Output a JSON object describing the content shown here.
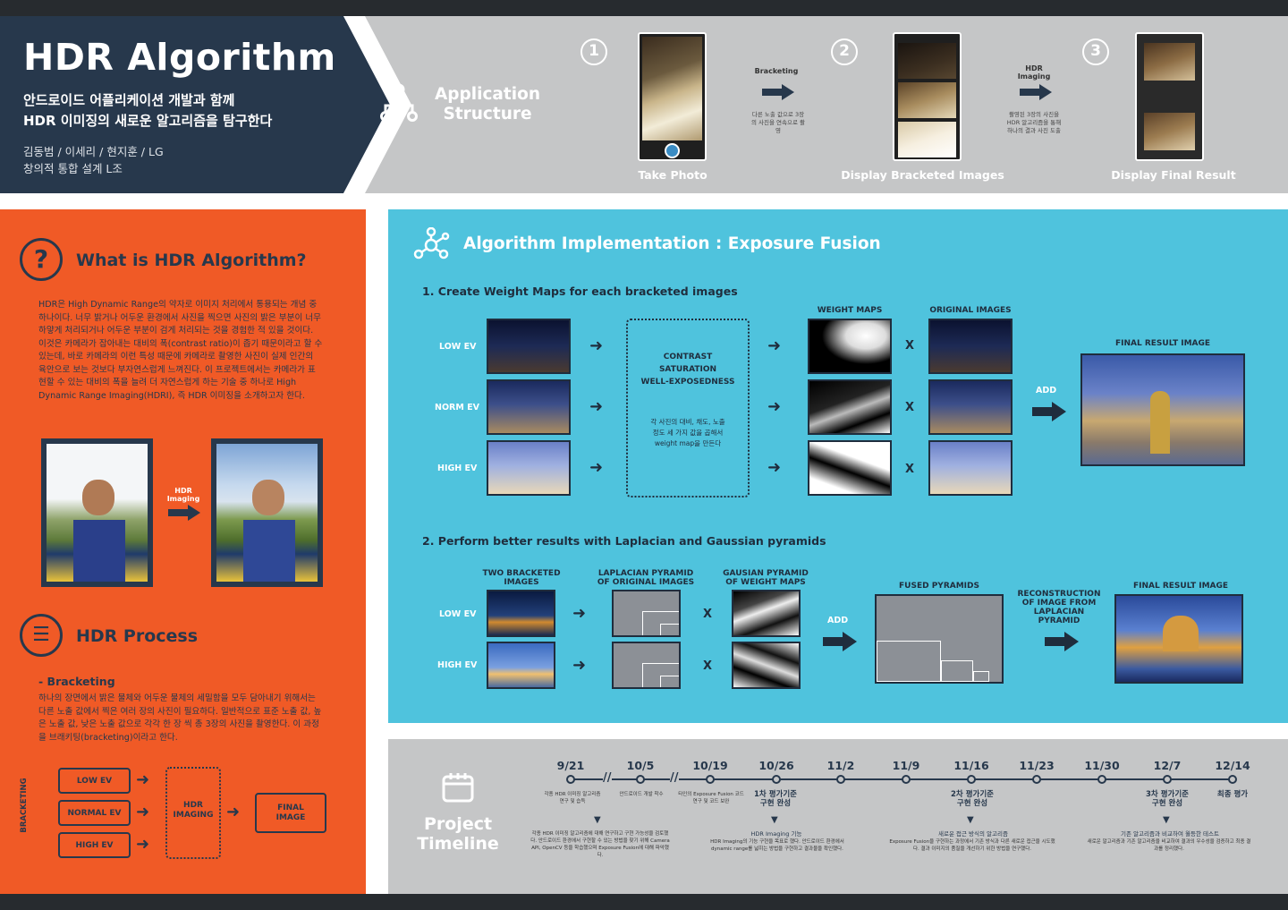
{
  "header": {
    "title": "HDR Algorithm",
    "subtitle_line1": "안드로이드 어플리케이션 개발과 함께",
    "subtitle_line2": "HDR 이미징의 새로운 알고리즘을 탐구한다",
    "authors_line1": "김동범 / 이세리 / 현지훈 / LG",
    "authors_line2": "창의적 통합 설계 L조"
  },
  "app_structure": {
    "title_line1": "Application",
    "title_line2": "Structure",
    "steps": [
      {
        "num": "1",
        "caption": "Take Photo"
      },
      {
        "num": "2",
        "caption": "Display Bracketed Images"
      },
      {
        "num": "3",
        "caption": "Display Final Result"
      }
    ],
    "flow1_label": "Bracketing",
    "flow1_note": "다른 노출 값으로 3장의 사진을 연속으로 촬영",
    "flow2_label_line1": "HDR",
    "flow2_label_line2": "Imaging",
    "flow2_note": "촬영된 3장의 사진을 HDR 알고리즘을 통해 하나의 결과 사진 도출"
  },
  "what_is": {
    "icon": "question-icon",
    "title": "What is HDR Algorithm?",
    "body": "HDR은 High Dynamic Range의 약자로 이미지 처리에서 통용되는 개념 중 하나이다. 너무 밝거나 어두운 환경에서 사진을 찍으면 사진의 밝은 부분이 너무 하얗게 처리되거나 어두운 부분이 검게 처리되는 것을 경험한 적 있을 것이다. 이것은 카메라가 잡아내는 대비의 폭(contrast ratio)이 좁기 때문이라고 할 수 있는데, 바로 카메라의 이런 특성 때문에 카메라로 촬영한 사진이 실제 인간의 육안으로 보는 것보다 부자연스럽게 느껴진다. 이 프로젝트에서는 카메라가 표현할 수 있는 대비의 폭을 늘려 더 자연스럽게 하는 기술 중 하나로 High Dynamic Range Imaging(HDRI), 즉 HDR 이미징을 소개하고자 한다.",
    "arrow_label_line1": "HDR",
    "arrow_label_line2": "Imaging"
  },
  "hdr_process": {
    "icon": "list-icon",
    "title": "HDR Process",
    "bracketing_heading": "- Bracketing",
    "bracketing_body": "하나의 장면에서 밝은 물체와 어두운 물체의 세밀함을 모두 담아내기 위해서는 다른 노출 값에서 찍은 여러 장의 사진이 필요하다. 일반적으로 표준 노출 값, 높은 노출 값, 낮은 노출 값으로 각각 한 장 씩 총 3장의 사진을 촬영한다. 이 과정을 브래키팅(bracketing)이라고 한다.",
    "side_label": "BRACKETING",
    "boxes": [
      "LOW EV",
      "NORMAL EV",
      "HIGH EV"
    ],
    "center_line1": "HDR",
    "center_line2": "IMAGING",
    "final_line1": "FINAL",
    "final_line2": "IMAGE"
  },
  "algorithm": {
    "title": "Algorithm Implementation : Exposure Fusion",
    "step1_title": "1. Create Weight Maps for each bracketed images",
    "rows": [
      "LOW EV",
      "NORM EV",
      "HIGH EV"
    ],
    "weight_maps_label": "WEIGHT MAPS",
    "original_images_label": "ORIGINAL IMAGES",
    "final_result_label": "FINAL RESULT IMAGE",
    "criteria": [
      "CONTRAST",
      "SATURATION",
      "WELL-EXPOSEDNESS"
    ],
    "criteria_note": "각 사진의 대비, 채도, 노출 정도 세 가지 값을 곱해서 weight map을 만든다",
    "x_sign": "X",
    "add_label": "ADD",
    "step2_title": "2. Perform better results with Laplacian and Gaussian pyramids",
    "two_bracketed_line1": "TWO BRACKETED",
    "two_bracketed_line2": "IMAGES",
    "laplacian_line1": "LAPLACIAN PYRAMID",
    "laplacian_line2": "OF ORIGINAL IMAGES",
    "gausian_line1": "GAUSIAN PYRAMID",
    "gausian_line2": "OF WEIGHT MAPS",
    "rows2": [
      "LOW EV",
      "HIGH EV"
    ],
    "fused_label": "FUSED PYRAMIDS",
    "reconstruction_line1": "RECONSTRUCTION",
    "reconstruction_line2": "OF IMAGE FROM",
    "reconstruction_line3": "LAPLACIAN",
    "reconstruction_line4": "PYRAMID",
    "final_result2_label": "FINAL RESULT IMAGE"
  },
  "timeline": {
    "title_line1": "Project",
    "title_line2": "Timeline",
    "dates": [
      "9/21",
      "10/5",
      "10/19",
      "10/26",
      "11/2",
      "11/9",
      "11/16",
      "11/23",
      "11/30",
      "12/7",
      "12/14"
    ],
    "events": {
      "e1": "각종 HDR 이미징 알고리즘 연구 및 습득",
      "e2": "안드로이드 개발 착수",
      "e3": "타인의 Exposure Fusion 코드 연구 및 코드 보완",
      "e4_line1": "1차 평가기준",
      "e4_line2": "구현 완성",
      "e5_line1": "2차 평가기준",
      "e5_line2": "구현 완성",
      "e6_line1": "3차 평가기준",
      "e6_line2": "구현 완성",
      "e7": "최종 평가"
    },
    "details": {
      "d1": "각종 HDR 이미징 알고리즘에 대해 연구하고 구현 가능성을 검토했다. 안드로이드 환경에서 구현할 수 있는 방법을 찾기 위해 Camera API, OpenCV 등을 학습했으며 Exposure Fusion에 대해 파악했다.",
      "d2": "HDR Imaging 기능",
      "d2_body": "HDR Imaging의 기능 구현을 목표로 했다. 안드로이드 환경에서 dynamic range를 넓히는 방법을 구현하고 결과물을 확인했다.",
      "d3": "새로운 접근 방식의 알고리즘",
      "d3_body": "Exposure Fusion을 구현하는 과정에서 기존 방식과 다른 새로운 접근을 시도했다. 결과 이미지의 품질을 개선하기 위한 방법을 연구했다.",
      "d4": "기존 알고리즘과 비교하여 월등한 테스트",
      "d4_body": "새로운 알고리즘과 기존 알고리즘을 비교하여 결과의 우수성을 검증하고 최종 결과를 정리했다."
    }
  },
  "colors": {
    "navy": "#27384c",
    "orange": "#f05a26",
    "cyan": "#4fc3dd",
    "gray": "#c5c6c7"
  }
}
